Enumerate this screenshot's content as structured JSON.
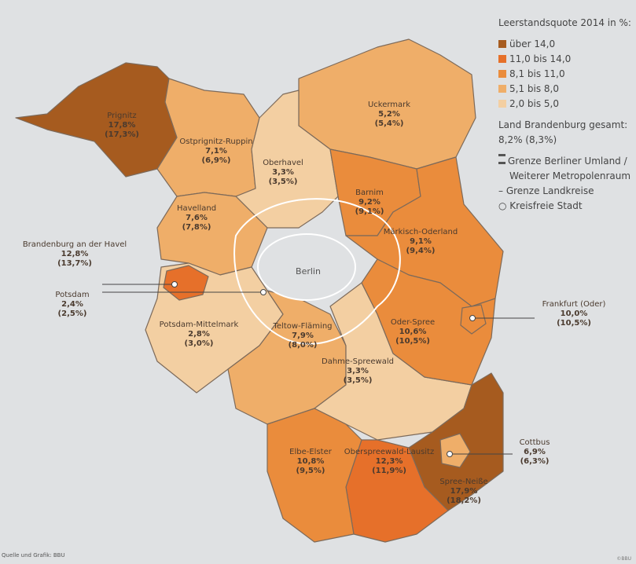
{
  "legend": {
    "title": "Leerstandsquote 2014 in %:",
    "classes": [
      {
        "label": "über 14,0",
        "color": "#a65b1f"
      },
      {
        "label": "11,0 bis 14,0",
        "color": "#e6702a"
      },
      {
        "label": "8,1 bis 11,0",
        "color": "#ea8c3c"
      },
      {
        "label": "5,1 bis 8,0",
        "color": "#efae69"
      },
      {
        "label": "2,0 bis 5,0",
        "color": "#f3cfa2"
      }
    ],
    "total_label": "Land Brandenburg gesamt:",
    "total_value": "8,2% (8,3%)",
    "border_umland_1": "Grenze Berliner Umland /",
    "border_umland_2": "Weiterer Metropolenraum",
    "border_kreise": "Grenze Landkreise",
    "kreisfreie": "Kreisfreie Stadt"
  },
  "center_label": "Berlin",
  "regions": [
    {
      "name": "Prignitz",
      "value": "17,8%",
      "prev": "(17,3%)",
      "class": 0
    },
    {
      "name": "Ostprignitz-Ruppin",
      "value": "7,1%",
      "prev": "(6,9%)",
      "class": 3
    },
    {
      "name": "Uckermark",
      "value": "5,2%",
      "prev": "(5,4%)",
      "class": 3
    },
    {
      "name": "Oberhavel",
      "value": "3,3%",
      "prev": "(3,5%)",
      "class": 4
    },
    {
      "name": "Barnim",
      "value": "9,2%",
      "prev": "(9,1%)",
      "class": 2
    },
    {
      "name": "Märkisch-Oderland",
      "value": "9,1%",
      "prev": "(9,4%)",
      "class": 2
    },
    {
      "name": "Havelland",
      "value": "7,6%",
      "prev": "(7,8%)",
      "class": 3
    },
    {
      "name": "Potsdam-Mittelmark",
      "value": "2,8%",
      "prev": "(3,0%)",
      "class": 4
    },
    {
      "name": "Teltow-Fläming",
      "value": "7,9%",
      "prev": "(8,0%)",
      "class": 3
    },
    {
      "name": "Dahme-Spreewald",
      "value": "3,3%",
      "prev": "(3,5%)",
      "class": 4
    },
    {
      "name": "Oder-Spree",
      "value": "10,6%",
      "prev": "(10,5%)",
      "class": 2
    },
    {
      "name": "Spree-Neiße",
      "value": "17,9%",
      "prev": "(18,2%)",
      "class": 0
    },
    {
      "name": "Oberspreewald-Lausitz",
      "value": "12,3%",
      "prev": "(11,9%)",
      "class": 1
    },
    {
      "name": "Elbe-Elster",
      "value": "10,8%",
      "prev": "(9,5%)",
      "class": 2
    }
  ],
  "cities": [
    {
      "name": "Brandenburg an der Havel",
      "value": "12,8%",
      "prev": "(13,7%)",
      "class": 1
    },
    {
      "name": "Potsdam",
      "value": "2,4%",
      "prev": "(2,5%)",
      "class": 4
    },
    {
      "name": "Frankfurt (Oder)",
      "value": "10,0%",
      "prev": "(10,5%)",
      "class": 2
    },
    {
      "name": "Cottbus",
      "value": "6,9%",
      "prev": "(6,3%)",
      "class": 3
    }
  ],
  "source": "Quelle und Grafik: BBU",
  "copyright": "©BBU"
}
